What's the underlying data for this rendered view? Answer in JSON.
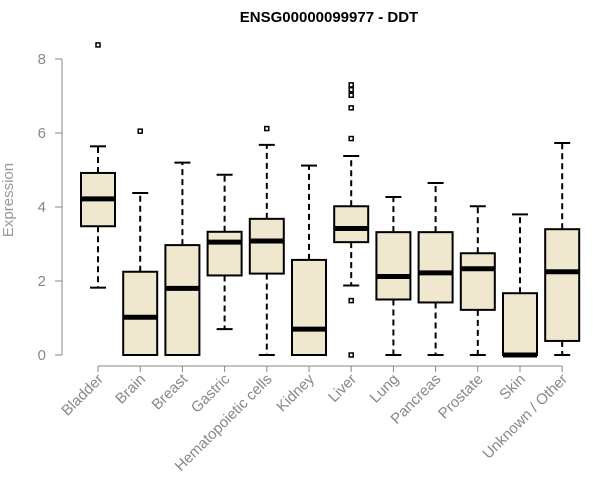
{
  "colors": {
    "box_fill": "#efe8cf",
    "box_stroke": "#000000",
    "axis": "#888888",
    "label": "#888888"
  },
  "chart_data": {
    "type": "boxplot",
    "title": "ENSG00000099977 - DDT",
    "xlabel": "",
    "ylabel": "Expression",
    "ylim": [
      0,
      8.5
    ],
    "yticks": [
      0,
      2,
      4,
      6,
      8
    ],
    "grid": false,
    "categories": [
      "Bladder",
      "Brain",
      "Breast",
      "Gastric",
      "Hematopoietic cells",
      "Kidney",
      "Liver",
      "Lung",
      "Pancreas",
      "Prostate",
      "Skin",
      "Unknown / Other"
    ],
    "boxes": [
      {
        "min": 1.82,
        "q1": 3.48,
        "median": 4.22,
        "q3": 4.92,
        "max": 5.64,
        "outliers": [
          8.38
        ]
      },
      {
        "min": 0.0,
        "q1": 0.0,
        "median": 1.02,
        "q3": 2.25,
        "max": 4.38,
        "outliers": [
          6.05
        ]
      },
      {
        "min": 0.0,
        "q1": 0.0,
        "median": 1.8,
        "q3": 2.97,
        "max": 5.2,
        "outliers": []
      },
      {
        "min": 0.7,
        "q1": 2.15,
        "median": 3.05,
        "q3": 3.33,
        "max": 4.87,
        "outliers": []
      },
      {
        "min": 0.0,
        "q1": 2.2,
        "median": 3.08,
        "q3": 3.68,
        "max": 5.68,
        "outliers": [
          6.12
        ]
      },
      {
        "min": 0.0,
        "q1": 0.0,
        "median": 0.7,
        "q3": 2.57,
        "max": 5.12,
        "outliers": []
      },
      {
        "min": 1.88,
        "q1": 3.05,
        "median": 3.42,
        "q3": 4.02,
        "max": 5.38,
        "outliers": [
          7.3,
          7.17,
          7.02,
          6.68,
          5.85,
          1.47,
          0.0
        ]
      },
      {
        "min": 0.0,
        "q1": 1.5,
        "median": 2.12,
        "q3": 3.32,
        "max": 4.27,
        "outliers": []
      },
      {
        "min": 0.0,
        "q1": 1.42,
        "median": 2.22,
        "q3": 3.32,
        "max": 4.65,
        "outliers": []
      },
      {
        "min": 0.0,
        "q1": 1.22,
        "median": 2.33,
        "q3": 2.75,
        "max": 4.02,
        "outliers": []
      },
      {
        "min": 0.0,
        "q1": 0.0,
        "median": 0.0,
        "q3": 1.67,
        "max": 3.8,
        "outliers": []
      },
      {
        "min": 0.0,
        "q1": 0.38,
        "median": 2.25,
        "q3": 3.4,
        "max": 5.73,
        "outliers": []
      }
    ]
  }
}
